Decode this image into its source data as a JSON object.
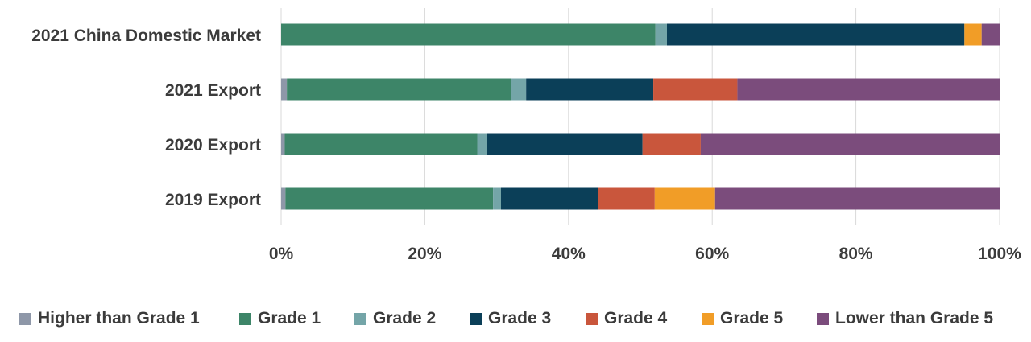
{
  "chart_data": {
    "type": "bar",
    "orientation": "horizontal",
    "stacked": true,
    "normalized": true,
    "categories": [
      "2021 China Domestic Market",
      "2021 Export",
      "2020 Export",
      "2019 Export"
    ],
    "series": [
      {
        "name": "Higher than Grade 1",
        "color": "#8e97a8",
        "values": [
          0.0,
          0.8,
          0.5,
          0.6
        ]
      },
      {
        "name": "Grade 1",
        "color": "#3d8568",
        "values": [
          52.1,
          31.2,
          26.8,
          28.9
        ]
      },
      {
        "name": "Grade 2",
        "color": "#74a5a8",
        "values": [
          1.6,
          2.1,
          1.4,
          1.1
        ]
      },
      {
        "name": "Grade 3",
        "color": "#0b3f58",
        "values": [
          41.4,
          17.7,
          21.6,
          13.5
        ]
      },
      {
        "name": "Grade 4",
        "color": "#c9563c",
        "values": [
          0.0,
          11.7,
          8.1,
          7.9
        ]
      },
      {
        "name": "Grade 5",
        "color": "#f19d27",
        "values": [
          2.4,
          0.0,
          0.0,
          8.4
        ]
      },
      {
        "name": "Lower than Grade 5",
        "color": "#7b4c7c",
        "values": [
          2.5,
          36.5,
          41.6,
          39.6
        ]
      }
    ],
    "x_ticks": [
      "0%",
      "20%",
      "40%",
      "60%",
      "80%",
      "100%"
    ],
    "xlim": [
      0,
      100
    ],
    "grid": "vertical",
    "legend_position": "bottom",
    "title": "",
    "xlabel": "",
    "ylabel": ""
  }
}
